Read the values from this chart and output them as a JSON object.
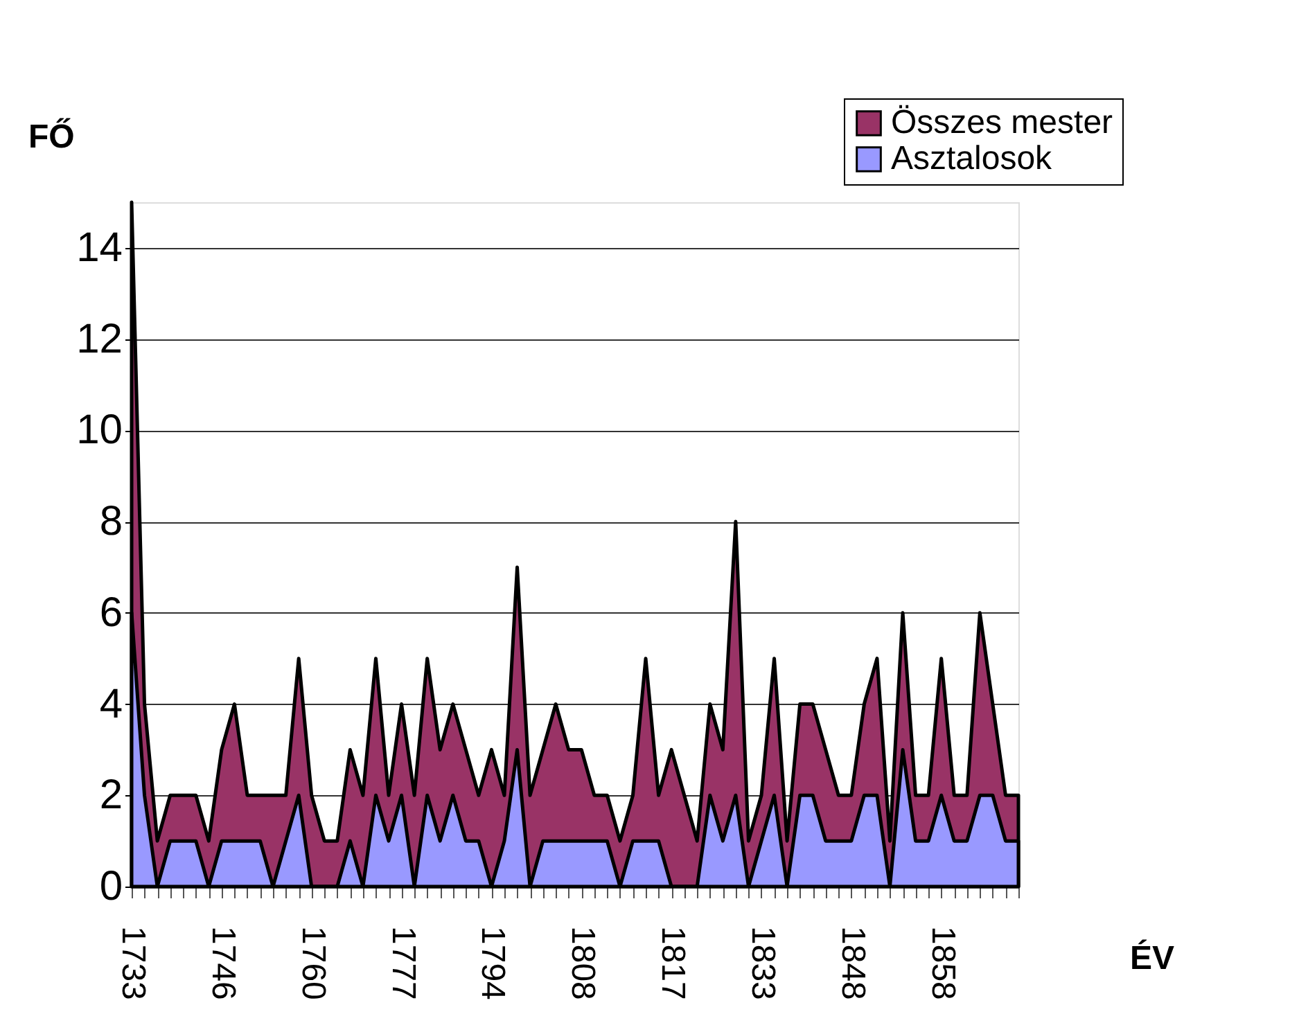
{
  "chart_data": {
    "type": "area",
    "xlabel": "ÉV",
    "ylabel": "FŐ",
    "categories": [
      "1733",
      null,
      null,
      null,
      null,
      null,
      null,
      "1746",
      null,
      null,
      null,
      null,
      null,
      null,
      "1760",
      null,
      null,
      null,
      null,
      null,
      null,
      "1777",
      null,
      null,
      null,
      null,
      null,
      null,
      "1794",
      null,
      null,
      null,
      null,
      null,
      null,
      "1808",
      null,
      null,
      null,
      null,
      null,
      null,
      "1817",
      null,
      null,
      null,
      null,
      null,
      null,
      "1833",
      null,
      null,
      null,
      null,
      null,
      null,
      "1848",
      null,
      null,
      null,
      null,
      null,
      null,
      "1858",
      null,
      null,
      null,
      null,
      null,
      null
    ],
    "series": [
      {
        "name": "Összes mester",
        "color": "#993366",
        "values": [
          15,
          4,
          1,
          2,
          2,
          2,
          1,
          3,
          4,
          2,
          2,
          2,
          2,
          5,
          2,
          1,
          1,
          3,
          2,
          5,
          2,
          4,
          2,
          5,
          3,
          4,
          3,
          2,
          3,
          2,
          7,
          2,
          3,
          4,
          3,
          3,
          2,
          2,
          1,
          2,
          5,
          2,
          3,
          2,
          1,
          4,
          3,
          8,
          1,
          2,
          5,
          1,
          4,
          4,
          3,
          2,
          2,
          4,
          5,
          1,
          6,
          2,
          2,
          5,
          2,
          2,
          6,
          4,
          2,
          2
        ]
      },
      {
        "name": "Asztalosok",
        "color": "#9999ff",
        "values": [
          6,
          2,
          0,
          1,
          1,
          1,
          0,
          1,
          1,
          1,
          1,
          0,
          1,
          2,
          0,
          0,
          0,
          1,
          0,
          2,
          1,
          2,
          0,
          2,
          1,
          2,
          1,
          1,
          0,
          1,
          3,
          0,
          1,
          1,
          1,
          1,
          1,
          1,
          0,
          1,
          1,
          1,
          0,
          0,
          0,
          2,
          1,
          2,
          0,
          1,
          2,
          0,
          2,
          2,
          1,
          1,
          1,
          2,
          2,
          0,
          3,
          1,
          1,
          2,
          1,
          1,
          2,
          2,
          1,
          1
        ]
      }
    ],
    "ylim": [
      0,
      15
    ],
    "yticks": [
      0,
      2,
      4,
      6,
      8,
      10,
      12,
      14
    ],
    "grid": "y",
    "legend": "top right"
  }
}
